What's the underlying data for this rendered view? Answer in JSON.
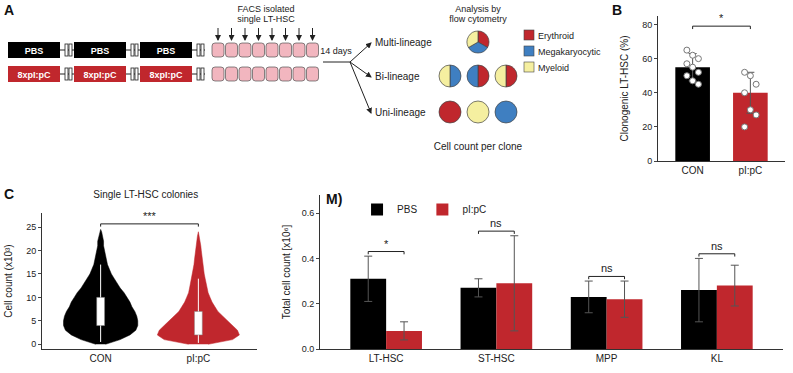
{
  "diagram": {
    "panel": "A",
    "treatments": [
      {
        "blocks": [
          "PBS",
          "PBS",
          "PBS"
        ],
        "color": "#000000"
      },
      {
        "blocks": [
          "8xpI:pC",
          "8xpI:pC",
          "8xpI:pC"
        ],
        "color": "#c0272d"
      }
    ],
    "sorting": [
      "FACS isolated",
      "single LT-HSC"
    ],
    "culture": "14 days",
    "analysis": [
      "Analysis by",
      "flow cytometry"
    ],
    "outcomes": [
      {
        "label": "Multi-lineage",
        "clones": [
          [
            "Erythroid",
            "Megakaryocytic",
            "Myeloid"
          ]
        ]
      },
      {
        "label": "Bi-lineage",
        "clones": [
          [
            "Megakaryocytic",
            "Myeloid"
          ],
          [
            "Erythroid",
            "Megakaryocytic"
          ],
          [
            "Erythroid",
            "Myeloid"
          ]
        ]
      },
      {
        "label": "Uni-lineage",
        "clones": [
          [
            "Erythroid"
          ],
          [
            "Myeloid"
          ],
          [
            "Megakaryocytic"
          ]
        ]
      }
    ],
    "lineages": [
      {
        "name": "Erythroid",
        "color": "#c0272d"
      },
      {
        "name": "Megakaryocytic",
        "color": "#3f7fc1"
      },
      {
        "name": "Myeloid",
        "color": "#f5efa0"
      }
    ],
    "footer": "Cell count per clone"
  },
  "chart_data": [
    {
      "panel": "B",
      "type": "bar",
      "categories": [
        "CON",
        "pI:pC"
      ],
      "values": [
        55,
        40
      ],
      "errors": [
        8,
        12
      ],
      "colors": [
        "#000000",
        "#c0272d"
      ],
      "points": [
        [
          65,
          62,
          60,
          57,
          55,
          52,
          50,
          47,
          45
        ],
        [
          52,
          50,
          45,
          40,
          30,
          27,
          20
        ]
      ],
      "y_label": "Clonogenic LT-HSC (%)",
      "ylim": [
        0,
        85
      ],
      "yticks": [
        0,
        20,
        40,
        60,
        80
      ],
      "significance": [
        {
          "between": [
            "CON",
            "pI:pC"
          ],
          "label": "*"
        }
      ]
    },
    {
      "panel": "C",
      "type": "violin",
      "title": "Single LT-HSC colonies",
      "categories": [
        "CON",
        "pI:pC"
      ],
      "colors": [
        "#000000",
        "#c0272d"
      ],
      "density": [
        {
          "y": [
            0,
            1,
            2,
            3,
            4,
            5,
            6,
            7,
            8,
            9,
            10,
            11,
            12,
            13,
            14,
            15,
            16,
            17,
            18,
            19,
            20,
            21,
            22,
            23,
            24,
            24.5
          ],
          "width": [
            0.05,
            0.2,
            0.3,
            0.36,
            0.38,
            0.38,
            0.37,
            0.35,
            0.32,
            0.3,
            0.27,
            0.24,
            0.2,
            0.17,
            0.14,
            0.11,
            0.09,
            0.07,
            0.06,
            0.05,
            0.04,
            0.03,
            0.03,
            0.02,
            0.01,
            0
          ]
        },
        {
          "y": [
            0,
            1,
            2,
            3,
            4,
            5,
            6,
            7,
            8,
            9,
            10,
            11,
            12,
            13,
            14,
            15,
            16,
            17,
            18,
            19,
            20,
            21,
            22,
            23,
            24
          ],
          "width": [
            0.1,
            0.35,
            0.42,
            0.4,
            0.35,
            0.3,
            0.25,
            0.2,
            0.17,
            0.14,
            0.12,
            0.1,
            0.09,
            0.08,
            0.07,
            0.06,
            0.05,
            0.045,
            0.04,
            0.035,
            0.03,
            0.025,
            0.02,
            0.01,
            0
          ]
        }
      ],
      "box": [
        {
          "q1": 4,
          "median": 6.5,
          "q3": 10,
          "whisker_low": 0.5,
          "whisker_high": 17
        },
        {
          "q1": 2,
          "median": 3.5,
          "q3": 7,
          "whisker_low": 0.3,
          "whisker_high": 14
        }
      ],
      "y_label": "Cell count (x10³)",
      "ylim": [
        -1,
        28
      ],
      "yticks": [
        0,
        5,
        10,
        15,
        20,
        25
      ],
      "significance": [
        {
          "between": [
            "CON",
            "pI:pC"
          ],
          "label": "***"
        }
      ]
    },
    {
      "panel": "M)",
      "type": "bar",
      "categories": [
        "LT-HSC",
        "ST-HSC",
        "MPP",
        "KL"
      ],
      "series": [
        {
          "name": "PBS",
          "color": "#000000",
          "values": [
            0.31,
            0.27,
            0.23,
            0.26
          ],
          "errors": [
            0.1,
            0.04,
            0.07,
            0.14
          ]
        },
        {
          "name": "pI:pC",
          "color": "#c0272d",
          "values": [
            0.08,
            0.29,
            0.22,
            0.28
          ],
          "errors": [
            0.04,
            0.21,
            0.08,
            0.09
          ]
        }
      ],
      "y_label": "Total cell count [x10⁶]",
      "ylim": [
        0,
        0.68
      ],
      "yticks": [
        {
          "value": 0,
          "label": "0.0"
        },
        0.2,
        0.4,
        0.6
      ],
      "legend": "upper left",
      "significance": [
        {
          "category": "LT-HSC",
          "label": "*"
        },
        {
          "category": "ST-HSC",
          "label": "ns"
        },
        {
          "category": "MPP",
          "label": "ns"
        },
        {
          "category": "KL",
          "label": "ns"
        }
      ]
    }
  ]
}
